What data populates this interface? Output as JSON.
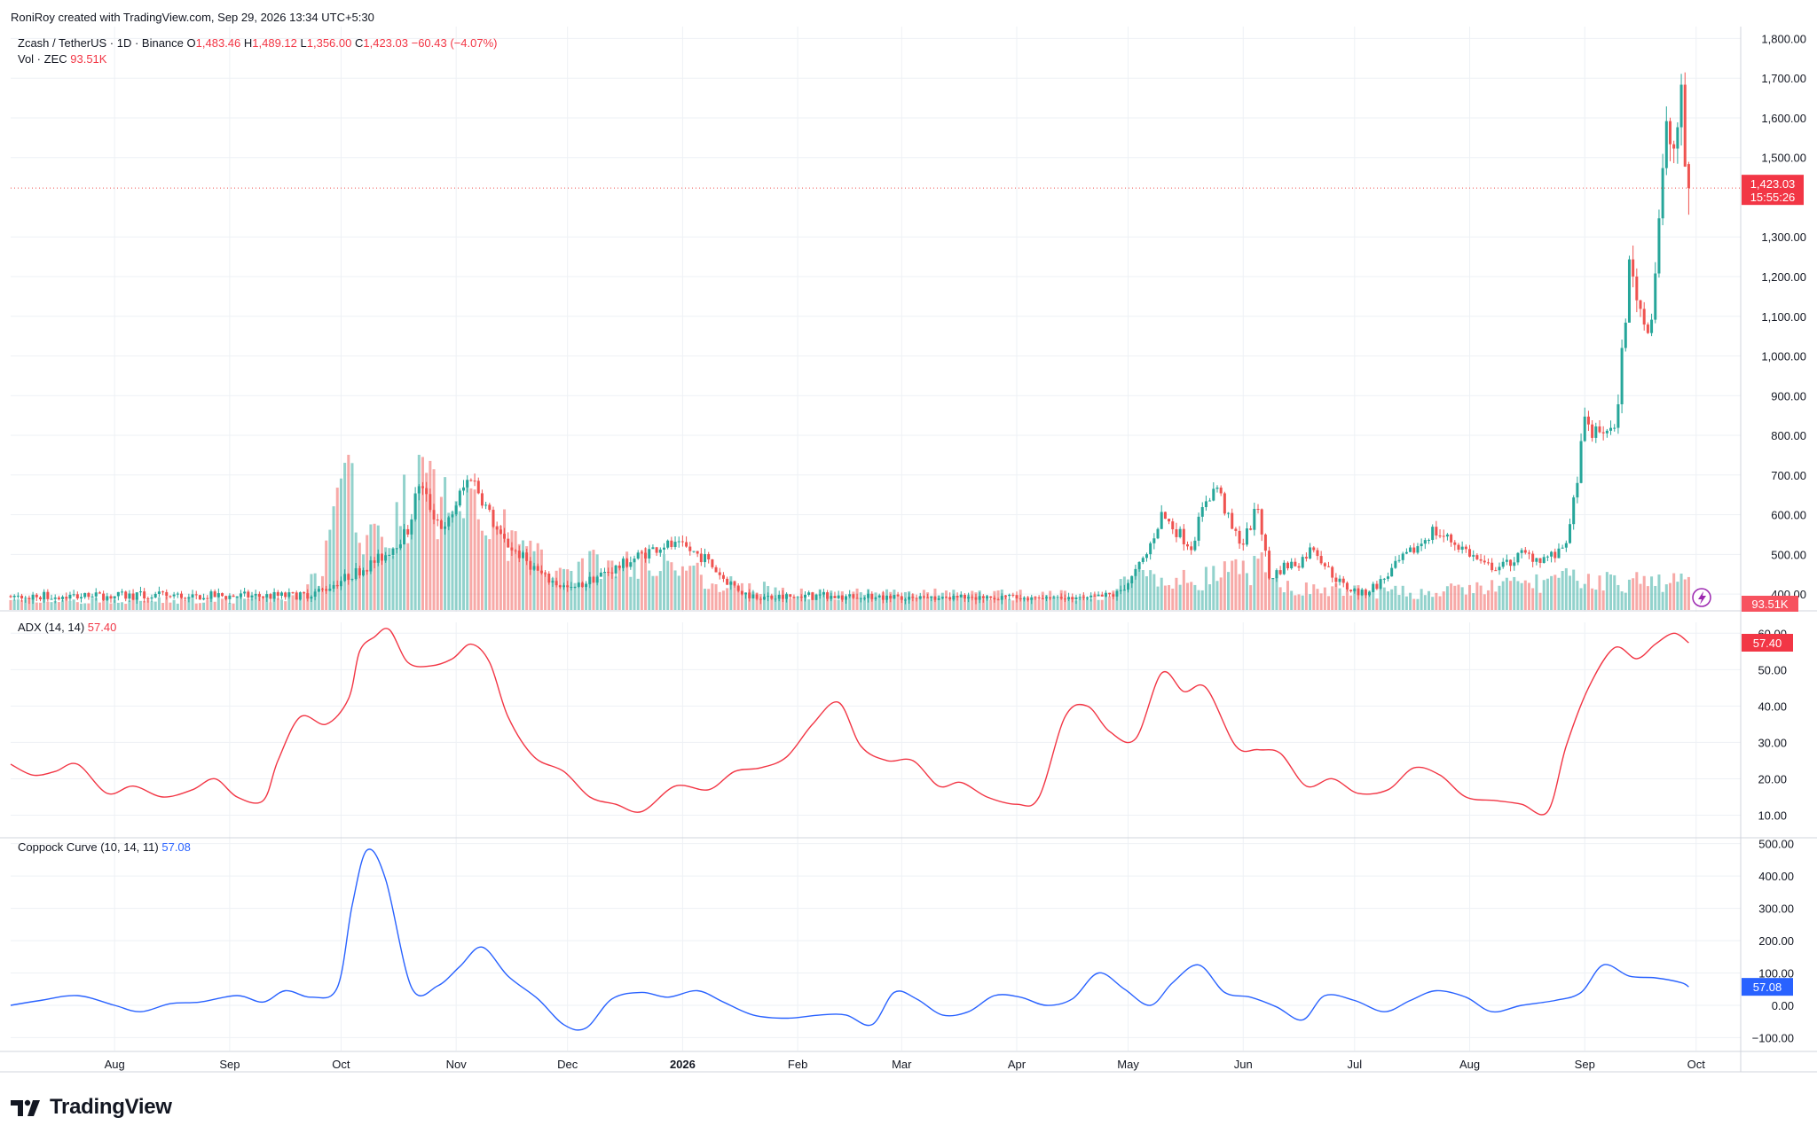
{
  "header": {
    "caption": "RoniRoy created with TradingView.com, Sep 29, 2026 13:34 UTC+5:30"
  },
  "legend": {
    "symbol": "Zcash / TetherUS · 1D · Binance",
    "o_label": "O",
    "o_value": "1,483.46",
    "h_label": "H",
    "h_value": "1,489.12",
    "l_label": "L",
    "l_value": "1,356.00",
    "c_label": "C",
    "c_value": "1,423.03",
    "change": "−60.43 (−4.07%)",
    "vol_label": "Vol · ZEC",
    "vol_value": "93.51K",
    "adx_label": "ADX (14, 14)",
    "adx_value": "57.40",
    "coppock_label": "Coppock Curve (10, 14, 11)",
    "coppock_value": "57.08"
  },
  "badges": {
    "price": "1,423.03",
    "countdown": "15:55:26",
    "volume": "93.51K",
    "adx": "57.40",
    "coppock": "57.08"
  },
  "colors": {
    "up": "#26a69a",
    "down": "#ef5350",
    "adx_line": "#f23645",
    "coppock_line": "#2962ff",
    "grid": "#eef1f5",
    "text": "#131722"
  },
  "brand": {
    "name": "TradingView"
  },
  "chart_data": [
    {
      "type": "candlestick",
      "title": "Zcash / TetherUS · 1D · Binance",
      "y_ticks": [
        "1,800.00",
        "1,700.00",
        "1,600.00",
        "1,500.00",
        "1,300.00",
        "1,200.00",
        "1,100.00",
        "1,000.00",
        "900.00",
        "800.00",
        "700.00",
        "600.00",
        "500.00",
        "400.00"
      ],
      "ylim": [
        360,
        1830
      ],
      "x_labels": [
        "Aug",
        "Sep",
        "Oct",
        "Nov",
        "Dec",
        "2026",
        "Feb",
        "Mar",
        "Apr",
        "May",
        "Jun",
        "Jul",
        "Aug",
        "Sep",
        "Oct"
      ],
      "price_path": [
        {
          "x": "2025-09-20",
          "y": 395
        },
        {
          "x": "2025-09-26",
          "y": 410
        },
        {
          "x": "2025-10-02",
          "y": 440
        },
        {
          "x": "2025-10-08",
          "y": 470
        },
        {
          "x": "2025-10-13",
          "y": 500
        },
        {
          "x": "2025-10-19",
          "y": 560
        },
        {
          "x": "2025-10-22",
          "y": 680
        },
        {
          "x": "2025-10-26",
          "y": 600
        },
        {
          "x": "2025-10-29",
          "y": 560
        },
        {
          "x": "2025-11-02",
          "y": 650
        },
        {
          "x": "2025-11-05",
          "y": 700
        },
        {
          "x": "2025-11-09",
          "y": 620
        },
        {
          "x": "2025-11-13",
          "y": 540
        },
        {
          "x": "2025-11-18",
          "y": 500
        },
        {
          "x": "2025-11-25",
          "y": 440
        },
        {
          "x": "2025-12-02",
          "y": 410
        },
        {
          "x": "2025-12-08",
          "y": 440
        },
        {
          "x": "2025-12-15",
          "y": 470
        },
        {
          "x": "2025-12-21",
          "y": 500
        },
        {
          "x": "2025-12-27",
          "y": 525
        },
        {
          "x": "2026-01-02",
          "y": 515
        },
        {
          "x": "2026-01-07",
          "y": 490
        },
        {
          "x": "2026-01-12",
          "y": 440
        },
        {
          "x": "2026-01-18",
          "y": 400
        },
        {
          "x": "2026-01-25",
          "y": 390
        },
        {
          "x": "2026-02-05",
          "y": 395
        },
        {
          "x": "2026-02-20",
          "y": 390
        },
        {
          "x": "2026-03-05",
          "y": 385
        },
        {
          "x": "2026-03-20",
          "y": 390
        },
        {
          "x": "2026-04-05",
          "y": 385
        },
        {
          "x": "2026-04-20",
          "y": 385
        },
        {
          "x": "2026-04-28",
          "y": 400
        },
        {
          "x": "2026-05-02",
          "y": 440
        },
        {
          "x": "2026-05-06",
          "y": 500
        },
        {
          "x": "2026-05-10",
          "y": 600
        },
        {
          "x": "2026-05-14",
          "y": 560
        },
        {
          "x": "2026-05-18",
          "y": 520
        },
        {
          "x": "2026-05-22",
          "y": 640
        },
        {
          "x": "2026-05-25",
          "y": 670
        },
        {
          "x": "2026-05-29",
          "y": 560
        },
        {
          "x": "2026-06-01",
          "y": 530
        },
        {
          "x": "2026-06-05",
          "y": 620
        },
        {
          "x": "2026-06-08",
          "y": 440
        },
        {
          "x": "2026-06-12",
          "y": 470
        },
        {
          "x": "2026-06-16",
          "y": 480
        },
        {
          "x": "2026-06-20",
          "y": 520
        },
        {
          "x": "2026-06-24",
          "y": 460
        },
        {
          "x": "2026-06-28",
          "y": 420
        },
        {
          "x": "2026-07-03",
          "y": 400
        },
        {
          "x": "2026-07-08",
          "y": 430
        },
        {
          "x": "2026-07-13",
          "y": 480
        },
        {
          "x": "2026-07-18",
          "y": 520
        },
        {
          "x": "2026-07-22",
          "y": 560
        },
        {
          "x": "2026-07-26",
          "y": 540
        },
        {
          "x": "2026-07-31",
          "y": 510
        },
        {
          "x": "2026-08-05",
          "y": 470
        },
        {
          "x": "2026-08-10",
          "y": 470
        },
        {
          "x": "2026-08-15",
          "y": 500
        },
        {
          "x": "2026-08-20",
          "y": 490
        },
        {
          "x": "2026-08-25",
          "y": 500
        },
        {
          "x": "2026-08-28",
          "y": 560
        },
        {
          "x": "2026-08-30",
          "y": 700
        },
        {
          "x": "2026-09-01",
          "y": 830
        },
        {
          "x": "2026-09-04",
          "y": 800
        },
        {
          "x": "2026-09-07",
          "y": 820
        },
        {
          "x": "2026-09-09",
          "y": 800
        },
        {
          "x": "2026-09-11",
          "y": 1000
        },
        {
          "x": "2026-09-13",
          "y": 1220
        },
        {
          "x": "2026-09-15",
          "y": 1160
        },
        {
          "x": "2026-09-17",
          "y": 1080
        },
        {
          "x": "2026-09-19",
          "y": 1100
        },
        {
          "x": "2026-09-21",
          "y": 1350
        },
        {
          "x": "2026-09-23",
          "y": 1560
        },
        {
          "x": "2026-09-25",
          "y": 1520
        },
        {
          "x": "2026-09-27",
          "y": 1640
        },
        {
          "x": "2026-09-28",
          "y": 1483
        },
        {
          "x": "2026-09-29",
          "y": 1423
        }
      ],
      "last_close": 1423.03
    },
    {
      "type": "bar",
      "title": "Vol · ZEC",
      "last_value": "93.51K",
      "volume_profile": [
        {
          "x": "2025-07-04",
          "v": 0.06
        },
        {
          "x": "2025-09-20",
          "v": 0.08
        },
        {
          "x": "2025-09-26",
          "v": 0.3
        },
        {
          "x": "2025-10-02",
          "v": 0.9
        },
        {
          "x": "2025-10-08",
          "v": 0.55
        },
        {
          "x": "2025-10-13",
          "v": 0.45
        },
        {
          "x": "2025-10-22",
          "v": 0.9
        },
        {
          "x": "2025-11-02",
          "v": 0.65
        },
        {
          "x": "2025-11-05",
          "v": 1.0
        },
        {
          "x": "2025-11-13",
          "v": 0.55
        },
        {
          "x": "2025-11-20",
          "v": 0.4
        },
        {
          "x": "2025-12-01",
          "v": 0.3
        },
        {
          "x": "2025-12-27",
          "v": 0.35
        },
        {
          "x": "2026-01-10",
          "v": 0.2
        },
        {
          "x": "2026-02-01",
          "v": 0.12
        },
        {
          "x": "2026-04-25",
          "v": 0.1
        },
        {
          "x": "2026-05-03",
          "v": 0.25
        },
        {
          "x": "2026-05-10",
          "v": 0.18
        },
        {
          "x": "2026-06-06",
          "v": 0.3
        },
        {
          "x": "2026-06-15",
          "v": 0.15
        },
        {
          "x": "2026-07-20",
          "v": 0.12
        },
        {
          "x": "2026-08-28",
          "v": 0.22
        },
        {
          "x": "2026-09-12",
          "v": 0.2
        },
        {
          "x": "2026-09-25",
          "v": 0.2
        }
      ]
    },
    {
      "type": "line",
      "title": "ADX (14, 14)",
      "y_ticks": [
        "60.00",
        "50.00",
        "40.00",
        "30.00",
        "20.00",
        "10.00"
      ],
      "ylim": [
        5,
        63
      ],
      "x": [
        "2025-07-04",
        "2025-07-10",
        "2025-07-16",
        "2025-07-22",
        "2025-07-30",
        "2025-08-06",
        "2025-08-14",
        "2025-08-22",
        "2025-08-28",
        "2025-09-03",
        "2025-09-10",
        "2025-09-14",
        "2025-09-20",
        "2025-09-27",
        "2025-10-03",
        "2025-10-06",
        "2025-10-10",
        "2025-10-14",
        "2025-10-19",
        "2025-10-25",
        "2025-10-31",
        "2025-11-05",
        "2025-11-10",
        "2025-11-15",
        "2025-11-22",
        "2025-11-30",
        "2025-12-07",
        "2025-12-14",
        "2025-12-21",
        "2025-12-30",
        "2026-01-08",
        "2026-01-15",
        "2026-01-22",
        "2026-01-29",
        "2026-02-05",
        "2026-02-12",
        "2026-02-18",
        "2026-02-25",
        "2026-03-04",
        "2026-03-11",
        "2026-03-17",
        "2026-03-24",
        "2026-04-01",
        "2026-04-07",
        "2026-04-14",
        "2026-04-20",
        "2026-04-26",
        "2026-05-03",
        "2026-05-10",
        "2026-05-16",
        "2026-05-22",
        "2026-05-30",
        "2026-06-05",
        "2026-06-11",
        "2026-06-18",
        "2026-06-25",
        "2026-07-02",
        "2026-07-10",
        "2026-07-17",
        "2026-07-24",
        "2026-07-31",
        "2026-08-08",
        "2026-08-15",
        "2026-08-22",
        "2026-08-27",
        "2026-09-02",
        "2026-09-09",
        "2026-09-15",
        "2026-09-20",
        "2026-09-25",
        "2026-09-29"
      ],
      "values": [
        24,
        21,
        22,
        24,
        16,
        18,
        15,
        17,
        20,
        15,
        14,
        25,
        37,
        35,
        42,
        55,
        59,
        61,
        52,
        51,
        53,
        57,
        52,
        37,
        26,
        22,
        15,
        13,
        11,
        18,
        17,
        22,
        23,
        26,
        35,
        41,
        29,
        25,
        25,
        18,
        19,
        15,
        13,
        15,
        37,
        40,
        33,
        31,
        49,
        44,
        45,
        29,
        28,
        27,
        18,
        20,
        16,
        17,
        23,
        21,
        15,
        14,
        13,
        11,
        29,
        45,
        56,
        53,
        57,
        60,
        57.4
      ]
    },
    {
      "type": "line",
      "title": "Coppock Curve (10, 14, 11)",
      "y_ticks": [
        "500.00",
        "400.00",
        "300.00",
        "200.00",
        "100.00",
        "0.00",
        "−100.00"
      ],
      "ylim": [
        -140,
        510
      ],
      "x": [
        "2025-07-04",
        "2025-07-12",
        "2025-07-22",
        "2025-08-01",
        "2025-08-08",
        "2025-08-16",
        "2025-08-24",
        "2025-09-03",
        "2025-09-10",
        "2025-09-16",
        "2025-09-23",
        "2025-09-30",
        "2025-10-04",
        "2025-10-08",
        "2025-10-13",
        "2025-10-20",
        "2025-10-27",
        "2025-11-02",
        "2025-11-08",
        "2025-11-15",
        "2025-11-23",
        "2025-11-30",
        "2025-12-06",
        "2025-12-13",
        "2025-12-21",
        "2025-12-28",
        "2026-01-05",
        "2026-01-12",
        "2026-01-20",
        "2026-01-29",
        "2026-02-07",
        "2026-02-14",
        "2026-02-21",
        "2026-02-27",
        "2026-03-05",
        "2026-03-12",
        "2026-03-19",
        "2026-03-26",
        "2026-04-02",
        "2026-04-09",
        "2026-04-16",
        "2026-04-23",
        "2026-04-30",
        "2026-05-07",
        "2026-05-13",
        "2026-05-20",
        "2026-05-27",
        "2026-06-03",
        "2026-06-10",
        "2026-06-17",
        "2026-06-23",
        "2026-07-01",
        "2026-07-09",
        "2026-07-16",
        "2026-07-23",
        "2026-07-31",
        "2026-08-07",
        "2026-08-15",
        "2026-08-24",
        "2026-08-31",
        "2026-09-06",
        "2026-09-13",
        "2026-09-20",
        "2026-09-27",
        "2026-09-29"
      ],
      "values": [
        0,
        15,
        30,
        0,
        -20,
        5,
        10,
        30,
        10,
        45,
        25,
        55,
        310,
        480,
        390,
        55,
        60,
        120,
        180,
        90,
        20,
        -60,
        -70,
        20,
        40,
        25,
        45,
        10,
        -30,
        -40,
        -30,
        -30,
        -60,
        40,
        20,
        -30,
        -20,
        30,
        25,
        0,
        20,
        100,
        50,
        0,
        70,
        125,
        40,
        25,
        -5,
        -45,
        30,
        15,
        -20,
        15,
        45,
        25,
        -20,
        0,
        15,
        40,
        125,
        90,
        85,
        70,
        57.08
      ]
    }
  ]
}
